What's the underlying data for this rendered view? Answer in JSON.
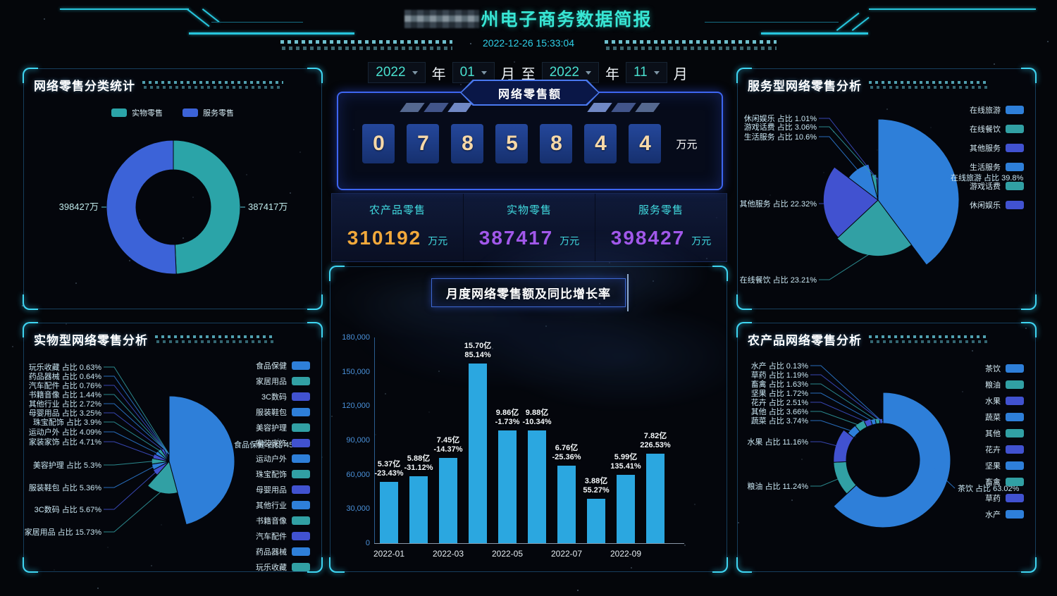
{
  "header": {
    "title": "州电子商务数据简报",
    "timestamp": "2022-12-26 15:33:04"
  },
  "date_filter": {
    "start_year": "2022",
    "start_month": "01",
    "end_year": "2022",
    "end_month": "11",
    "year_label": "年",
    "month_label": "月",
    "to_label": "至"
  },
  "kpi": {
    "title": "网络零售额",
    "digits": [
      "0",
      "7",
      "8",
      "5",
      "8",
      "4",
      "4"
    ],
    "unit": "万元",
    "stats": [
      {
        "label": "农产品零售",
        "value": "310192",
        "unit": "万元",
        "color": "#f2a93b"
      },
      {
        "label": "实物零售",
        "value": "387417",
        "unit": "万元",
        "color": "#a158ea"
      },
      {
        "label": "服务零售",
        "value": "398427",
        "unit": "万元",
        "color": "#a158ea"
      }
    ]
  },
  "share_word": "占比",
  "panels": {
    "category": {
      "title": "网络零售分类统计"
    },
    "service": {
      "title": "服务型网络零售分析"
    },
    "physical": {
      "title": "实物型网络零售分析"
    },
    "agri": {
      "title": "农产品网络零售分析"
    },
    "monthly": {
      "title": "月度网络零售额及同比增长率"
    }
  },
  "palette": {
    "blue": "#2e7fd9",
    "teal": "#31a0a4",
    "indigo": "#4152d0",
    "bar": "#2ba7e0",
    "donut_teal": "#2ba4a8",
    "donut_blue": "#3c63d8"
  },
  "chart_data": [
    {
      "id": "category",
      "type": "pie",
      "title": "网络零售分类统计",
      "legend": [
        "实物零售",
        "服务零售"
      ],
      "items": [
        {
          "name": "实物零售",
          "value": 387417,
          "label": "387417万"
        },
        {
          "name": "服务零售",
          "value": 398427,
          "label": "398427万"
        }
      ]
    },
    {
      "id": "service",
      "type": "pie",
      "title": "服务型网络零售分析",
      "items": [
        {
          "name": "在线旅游",
          "pct": 39.8,
          "pct_label": "39.8%"
        },
        {
          "name": "在线餐饮",
          "pct": 23.21,
          "pct_label": "23.21%"
        },
        {
          "name": "其他服务",
          "pct": 22.32,
          "pct_label": "22.32%"
        },
        {
          "name": "生活服务",
          "pct": 10.6,
          "pct_label": "10.6%"
        },
        {
          "name": "游戏话费",
          "pct": 3.06,
          "pct_label": "3.06%"
        },
        {
          "name": "休闲娱乐",
          "pct": 1.01,
          "pct_label": "1.01%"
        }
      ]
    },
    {
      "id": "physical",
      "type": "pie",
      "title": "实物型网络零售分析",
      "items": [
        {
          "name": "食品保健",
          "pct": 45.8,
          "pct_label": "45.8%"
        },
        {
          "name": "家居用品",
          "pct": 15.73,
          "pct_label": "15.73%"
        },
        {
          "name": "3C数码",
          "pct": 5.67,
          "pct_label": "5.67%"
        },
        {
          "name": "服装鞋包",
          "pct": 5.36,
          "pct_label": "5.36%"
        },
        {
          "name": "美容护理",
          "pct": 5.3,
          "pct_label": "5.3%"
        },
        {
          "name": "家装家饰",
          "pct": 4.71,
          "pct_label": "4.71%"
        },
        {
          "name": "运动户外",
          "pct": 4.09,
          "pct_label": "4.09%"
        },
        {
          "name": "珠宝配饰",
          "pct": 3.9,
          "pct_label": "3.9%"
        },
        {
          "name": "母婴用品",
          "pct": 3.25,
          "pct_label": "3.25%"
        },
        {
          "name": "其他行业",
          "pct": 2.72,
          "pct_label": "2.72%"
        },
        {
          "name": "书籍音像",
          "pct": 1.44,
          "pct_label": "1.44%"
        },
        {
          "name": "汽车配件",
          "pct": 0.76,
          "pct_label": "0.76%"
        },
        {
          "name": "药品器械",
          "pct": 0.64,
          "pct_label": "0.64%"
        },
        {
          "name": "玩乐收藏",
          "pct": 0.63,
          "pct_label": "0.63%"
        }
      ]
    },
    {
      "id": "agri",
      "type": "pie",
      "title": "农产品网络零售分析",
      "items": [
        {
          "name": "茶饮",
          "pct": 63.02,
          "pct_label": "63.02%"
        },
        {
          "name": "粮油",
          "pct": 11.24,
          "pct_label": "11.24%"
        },
        {
          "name": "水果",
          "pct": 11.16,
          "pct_label": "11.16%"
        },
        {
          "name": "蔬菜",
          "pct": 3.74,
          "pct_label": "3.74%"
        },
        {
          "name": "其他",
          "pct": 3.66,
          "pct_label": "3.66%"
        },
        {
          "name": "花卉",
          "pct": 2.51,
          "pct_label": "2.51%"
        },
        {
          "name": "坚果",
          "pct": 1.72,
          "pct_label": "1.72%"
        },
        {
          "name": "畜禽",
          "pct": 1.63,
          "pct_label": "1.63%"
        },
        {
          "name": "草药",
          "pct": 1.19,
          "pct_label": "1.19%"
        },
        {
          "name": "水产",
          "pct": 0.13,
          "pct_label": "0.13%"
        }
      ]
    },
    {
      "id": "monthly",
      "type": "bar",
      "title": "月度网络零售额及同比增长率",
      "categories": [
        "2022-01",
        "2022-02",
        "2022-03",
        "2022-04",
        "2022-05",
        "2022-06",
        "2022-07",
        "2022-08",
        "2022-09",
        "2022-10"
      ],
      "values": [
        53700,
        58800,
        74500,
        157000,
        98600,
        98800,
        67600,
        38800,
        59900,
        78200
      ],
      "amount_labels": [
        "5.37亿",
        "5.88亿",
        "7.45亿",
        "15.70亿",
        "9.86亿",
        "9.88亿",
        "6.76亿",
        "3.88亿",
        "5.99亿",
        "7.82亿"
      ],
      "growth_labels": [
        "-23.43%",
        "-31.12%",
        "-14.37%",
        "85.14%",
        "-1.73%",
        "-10.34%",
        "-25.36%",
        "55.27%",
        "135.41%",
        "226.53%"
      ],
      "x_tick_labels": [
        "2022-01",
        "2022-03",
        "2022-05",
        "2022-07",
        "2022-09"
      ],
      "y_ticks": [
        "0",
        "30,000",
        "60,000",
        "90,000",
        "120,000",
        "150,000",
        "180,000"
      ],
      "ylim": [
        0,
        180000
      ],
      "xlabel": "",
      "ylabel": ""
    }
  ]
}
